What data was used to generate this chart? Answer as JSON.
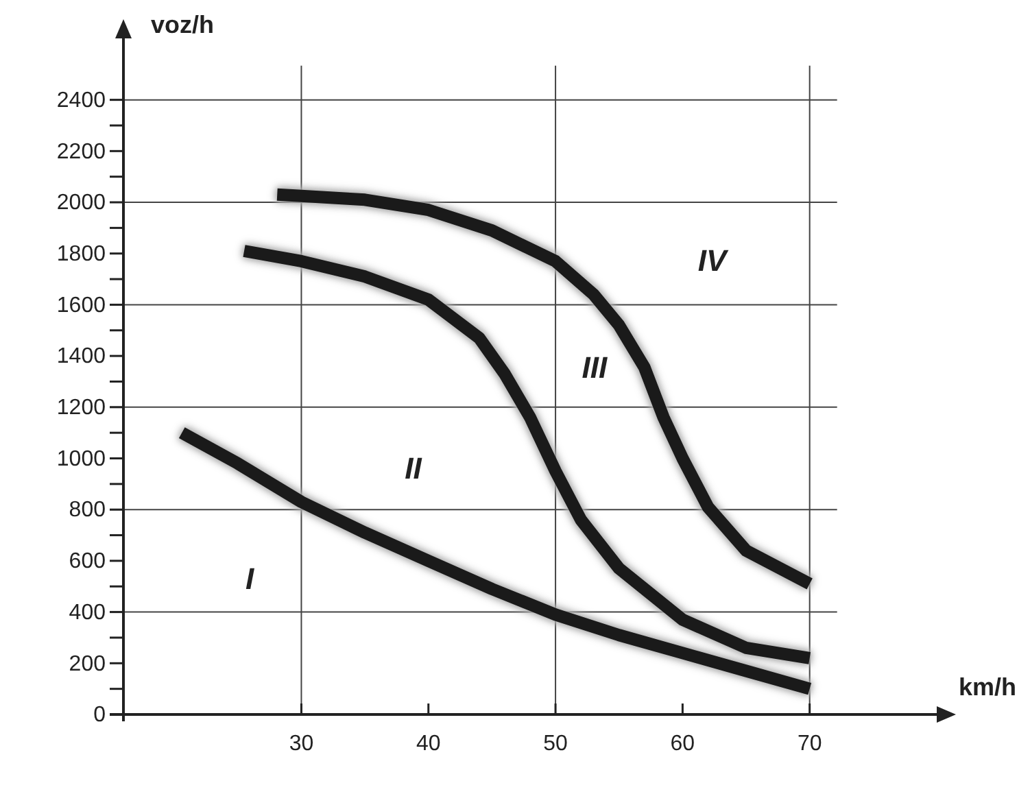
{
  "chart_data": {
    "type": "line",
    "xlabel": "km/h",
    "ylabel": "voz/h",
    "xlim": [
      16,
      80
    ],
    "ylim": [
      0,
      2640
    ],
    "xticks": [
      30,
      40,
      50,
      60,
      70
    ],
    "yticks": [
      0,
      {
        "value": 100,
        "label": null
      },
      200,
      {
        "value": 300,
        "label": null
      },
      400,
      {
        "value": 500,
        "label": null
      },
      600,
      {
        "value": 700,
        "label": null
      },
      800,
      {
        "value": 900,
        "label": null
      },
      1000,
      {
        "value": 1100,
        "label": null
      },
      1200,
      {
        "value": 1300,
        "label": null
      },
      1400,
      {
        "value": 1500,
        "label": null
      },
      1600,
      {
        "value": 1700,
        "label": null
      },
      1800,
      {
        "value": 1900,
        "label": null
      },
      2000,
      {
        "value": 2100,
        "label": null
      },
      2200,
      {
        "value": 2300,
        "label": null
      },
      2400
    ],
    "grid": true,
    "marker": "none",
    "line_style": "solid",
    "series": [
      {
        "color": "#1a1a1a",
        "x": [
          20.6,
          25,
          30,
          35,
          40,
          45,
          50,
          55,
          60,
          65,
          70
        ],
        "values": [
          1100,
          980,
          830,
          710,
          600,
          490,
          390,
          310,
          240,
          170,
          100
        ]
      },
      {
        "color": "#1a1a1a",
        "x": [
          25.5,
          30,
          35,
          40,
          44,
          46,
          48,
          50,
          52,
          55,
          60,
          65,
          70
        ],
        "values": [
          1810,
          1770,
          1710,
          1620,
          1470,
          1330,
          1160,
          950,
          760,
          570,
          370,
          260,
          220
        ]
      },
      {
        "color": "#1a1a1a",
        "x": [
          28.1,
          30,
          35,
          40,
          45,
          50,
          53,
          55,
          57,
          58.5,
          60,
          62,
          65,
          70
        ],
        "values": [
          2030,
          2025,
          2010,
          1970,
          1890,
          1770,
          1640,
          1520,
          1355,
          1160,
          1000,
          810,
          640,
          510
        ]
      }
    ],
    "annotations": [
      "I",
      "II",
      "III",
      "IV"
    ]
  }
}
